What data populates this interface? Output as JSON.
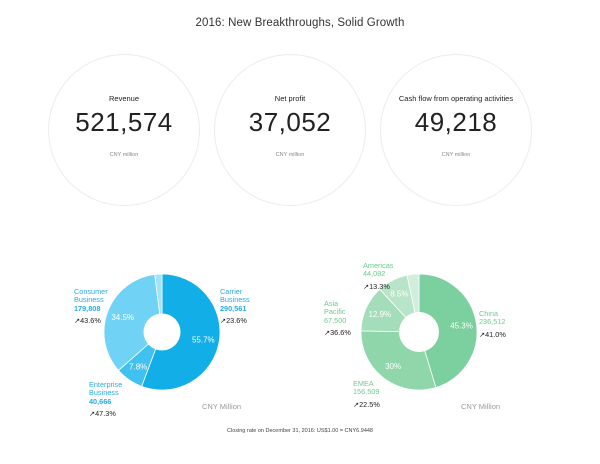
{
  "title": "2016: New Breakthroughs, Solid Growth",
  "kpis": [
    {
      "label": "Revenue",
      "value": "521,574",
      "unit": "CNY million"
    },
    {
      "label": "Net profit",
      "value": "37,052",
      "unit": "CNY million"
    },
    {
      "label": "Cash flow from operating activities",
      "value": "49,218",
      "unit": "CNY million"
    }
  ],
  "chart_data": [
    {
      "type": "pie",
      "unit": "CNY Million",
      "colors": [
        "#12aee7",
        "#41c1ef",
        "#70d3f5",
        "#a3e2f9"
      ],
      "slices": [
        {
          "name": "Carrier Business",
          "value": 290561,
          "percent": 55.7,
          "percent_label": "55.7%",
          "growth": "↗23.6%"
        },
        {
          "name": "Enterprise Business",
          "value": 40666,
          "percent": 7.8,
          "percent_label": "7.8%",
          "growth": "↗47.3%"
        },
        {
          "name": "Consumer Business",
          "value": 179808,
          "percent": 34.5,
          "percent_label": "34.5%",
          "growth": "↗43.6%"
        },
        {
          "name": "",
          "value": null,
          "percent": 2.0,
          "percent_label": "",
          "growth": ""
        }
      ]
    },
    {
      "type": "pie",
      "unit": "CNY Million",
      "colors": [
        "#7ccf9e",
        "#8fd6ab",
        "#a3ddb9",
        "#b8e5c9",
        "#d0eedb"
      ],
      "slices": [
        {
          "name": "China",
          "value": 236512,
          "percent": 45.3,
          "percent_label": "45.3%",
          "growth": "↗41.0%"
        },
        {
          "name": "EMEA",
          "value": 156509,
          "percent": 30.0,
          "percent_label": "30%",
          "growth": "↗22.5%"
        },
        {
          "name": "Asia Pacific",
          "value": 67500,
          "percent": 12.9,
          "percent_label": "12.9%",
          "growth": "↗36.6%"
        },
        {
          "name": "Americas",
          "value": 44082,
          "percent": 8.5,
          "percent_label": "8.5%",
          "growth": "↗13.3%"
        },
        {
          "name": "",
          "value": null,
          "percent": 3.3,
          "percent_label": "",
          "growth": ""
        }
      ]
    }
  ],
  "labels": {
    "carrier": {
      "line1": "Carrier",
      "line2": "Business",
      "value": "290,561"
    },
    "enterprise": {
      "line1": "Enterprise",
      "line2": "Business",
      "value": "40,666"
    },
    "consumer": {
      "line1": "Consumer",
      "line2": "Business",
      "value": "179,808"
    },
    "china": {
      "line1": "China",
      "value": "236,512"
    },
    "emea": {
      "line1": "EMEA",
      "value": "156,509"
    },
    "asia": {
      "line1": "Asia",
      "line2": "Pacific",
      "value": "67,500"
    },
    "americas": {
      "line1": "Americas",
      "value": "44,082"
    }
  },
  "footnote": "Closing rate on December 31, 2016: US$1.00 = CNY6.9448"
}
